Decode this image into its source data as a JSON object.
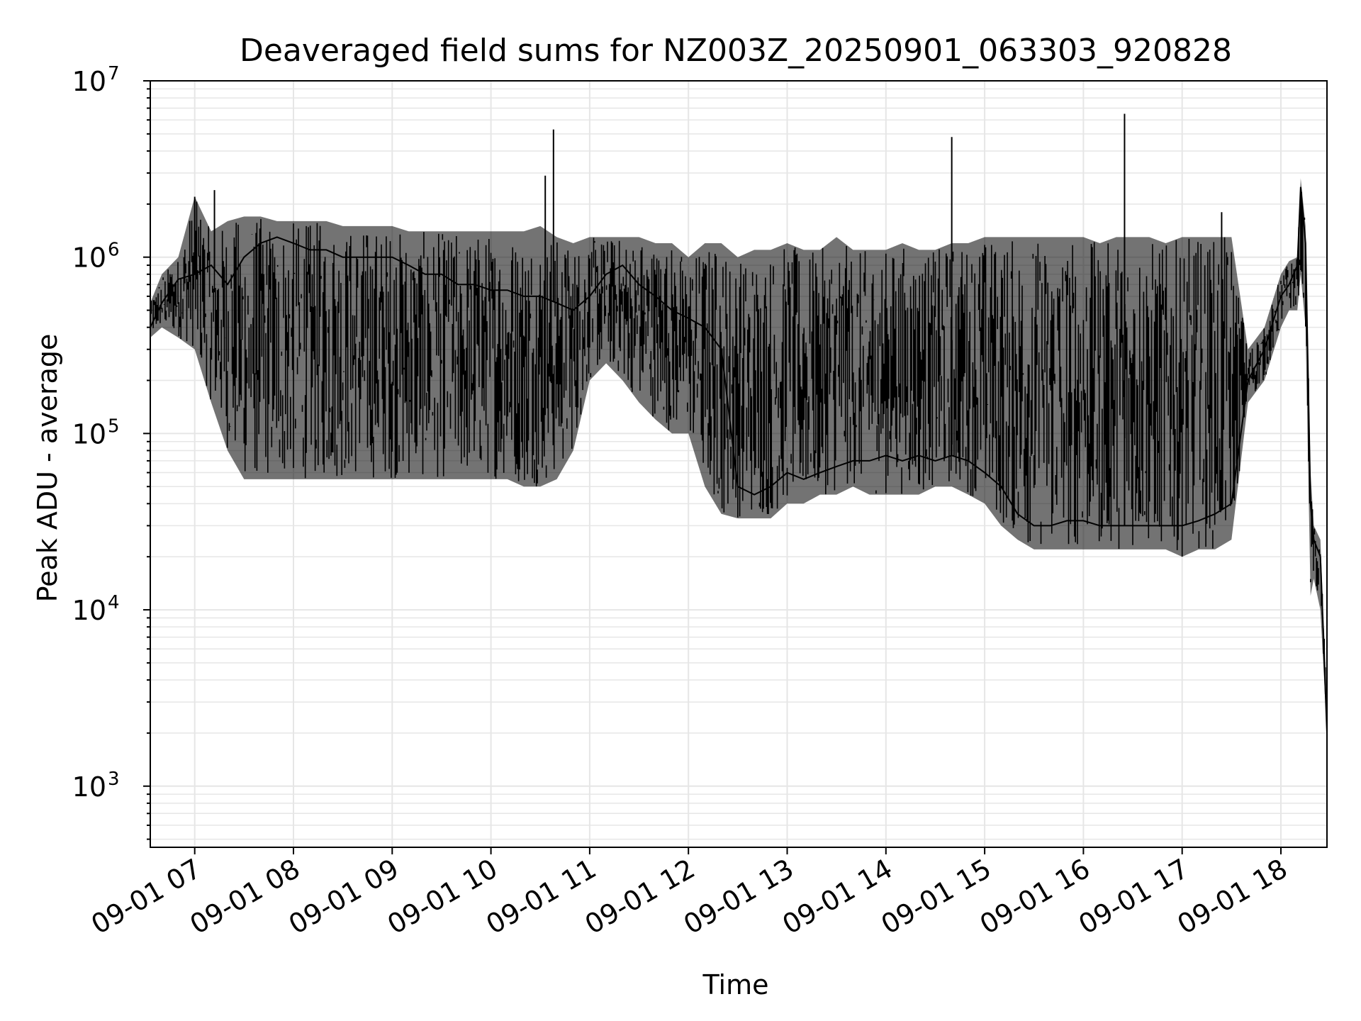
{
  "chart_data": {
    "type": "line",
    "title": "Deaveraged field sums for NZ003Z_20250901_063303_920828",
    "xlabel": "Time",
    "ylabel": "Peak ADU - average",
    "yscale": "log",
    "ylim": [
      450,
      10000000
    ],
    "xlim": [
      "2025-09-01 06:33",
      "2025-09-01 18:28"
    ],
    "grid": true,
    "line_color": "#000000",
    "grid_color": "#e6e6e6",
    "x_ticks": [
      {
        "value": "2025-09-01 07:00",
        "label": "09-01 07"
      },
      {
        "value": "2025-09-01 08:00",
        "label": "09-01 08"
      },
      {
        "value": "2025-09-01 09:00",
        "label": "09-01 09"
      },
      {
        "value": "2025-09-01 10:00",
        "label": "09-01 10"
      },
      {
        "value": "2025-09-01 11:00",
        "label": "09-01 11"
      },
      {
        "value": "2025-09-01 12:00",
        "label": "09-01 12"
      },
      {
        "value": "2025-09-01 13:00",
        "label": "09-01 13"
      },
      {
        "value": "2025-09-01 14:00",
        "label": "09-01 14"
      },
      {
        "value": "2025-09-01 15:00",
        "label": "09-01 15"
      },
      {
        "value": "2025-09-01 16:00",
        "label": "09-01 16"
      },
      {
        "value": "2025-09-01 17:00",
        "label": "09-01 17"
      },
      {
        "value": "2025-09-01 18:00",
        "label": "09-01 18"
      }
    ],
    "y_ticks": [
      {
        "value": 1000,
        "base": "10",
        "exp": "3"
      },
      {
        "value": 10000,
        "base": "10",
        "exp": "4"
      },
      {
        "value": 100000,
        "base": "10",
        "exp": "5"
      },
      {
        "value": 1000000,
        "base": "10",
        "exp": "6"
      },
      {
        "value": 10000000,
        "base": "10",
        "exp": "7"
      }
    ],
    "series": [
      {
        "x": [
          "2025-09-01 06:33",
          "2025-09-01 06:40",
          "2025-09-01 06:50",
          "2025-09-01 07:00",
          "2025-09-01 07:10",
          "2025-09-01 07:20",
          "2025-09-01 07:30",
          "2025-09-01 07:40",
          "2025-09-01 07:50",
          "2025-09-01 08:00",
          "2025-09-01 08:10",
          "2025-09-01 08:20",
          "2025-09-01 08:30",
          "2025-09-01 08:40",
          "2025-09-01 08:50",
          "2025-09-01 09:00",
          "2025-09-01 09:10",
          "2025-09-01 09:20",
          "2025-09-01 09:30",
          "2025-09-01 09:40",
          "2025-09-01 09:50",
          "2025-09-01 10:00",
          "2025-09-01 10:10",
          "2025-09-01 10:20",
          "2025-09-01 10:30",
          "2025-09-01 10:40",
          "2025-09-01 10:50",
          "2025-09-01 11:00",
          "2025-09-01 11:10",
          "2025-09-01 11:20",
          "2025-09-01 11:30",
          "2025-09-01 11:40",
          "2025-09-01 11:50",
          "2025-09-01 12:00",
          "2025-09-01 12:10",
          "2025-09-01 12:20",
          "2025-09-01 12:30",
          "2025-09-01 12:40",
          "2025-09-01 12:50",
          "2025-09-01 13:00",
          "2025-09-01 13:10",
          "2025-09-01 13:20",
          "2025-09-01 13:30",
          "2025-09-01 13:40",
          "2025-09-01 13:50",
          "2025-09-01 14:00",
          "2025-09-01 14:10",
          "2025-09-01 14:20",
          "2025-09-01 14:30",
          "2025-09-01 14:40",
          "2025-09-01 14:50",
          "2025-09-01 15:00",
          "2025-09-01 15:10",
          "2025-09-01 15:20",
          "2025-09-01 15:30",
          "2025-09-01 15:40",
          "2025-09-01 15:50",
          "2025-09-01 16:00",
          "2025-09-01 16:10",
          "2025-09-01 16:20",
          "2025-09-01 16:30",
          "2025-09-01 16:40",
          "2025-09-01 16:50",
          "2025-09-01 17:00",
          "2025-09-01 17:10",
          "2025-09-01 17:20",
          "2025-09-01 17:30",
          "2025-09-01 17:40",
          "2025-09-01 17:50",
          "2025-09-01 18:00",
          "2025-09-01 18:05",
          "2025-09-01 18:10",
          "2025-09-01 18:12",
          "2025-09-01 18:15",
          "2025-09-01 18:18",
          "2025-09-01 18:20",
          "2025-09-01 18:24",
          "2025-09-01 18:28"
        ],
        "y": [
          400000,
          550000,
          750000,
          800000,
          900000,
          700000,
          1000000,
          1200000,
          1300000,
          1200000,
          1100000,
          1100000,
          1000000,
          1000000,
          1000000,
          1000000,
          900000,
          800000,
          800000,
          700000,
          700000,
          650000,
          650000,
          600000,
          600000,
          550000,
          500000,
          600000,
          800000,
          900000,
          700000,
          600000,
          500000,
          450000,
          400000,
          300000,
          50000,
          45000,
          50000,
          60000,
          55000,
          60000,
          65000,
          70000,
          70000,
          75000,
          70000,
          75000,
          70000,
          75000,
          70000,
          60000,
          50000,
          35000,
          30000,
          30000,
          32000,
          32000,
          30000,
          30000,
          30000,
          30000,
          30000,
          30000,
          32000,
          35000,
          40000,
          200000,
          300000,
          600000,
          700000,
          900000,
          2500000,
          1200000,
          40000,
          25000,
          20000,
          2000
        ],
        "envelope_low": [
          350000,
          400000,
          350000,
          300000,
          150000,
          80000,
          55000,
          55000,
          55000,
          55000,
          55000,
          55000,
          55000,
          55000,
          55000,
          55000,
          55000,
          55000,
          55000,
          55000,
          55000,
          55000,
          55000,
          50000,
          50000,
          55000,
          80000,
          200000,
          250000,
          200000,
          150000,
          120000,
          100000,
          100000,
          50000,
          35000,
          33000,
          33000,
          33000,
          40000,
          40000,
          45000,
          45000,
          50000,
          45000,
          45000,
          45000,
          45000,
          50000,
          50000,
          45000,
          40000,
          30000,
          25000,
          22000,
          22000,
          22000,
          22000,
          22000,
          22000,
          22000,
          22000,
          22000,
          20000,
          22000,
          22000,
          25000,
          150000,
          200000,
          400000,
          500000,
          500000,
          800000,
          400000,
          12000,
          15000,
          10000,
          2000
        ],
        "envelope_high": [
          550000,
          800000,
          1000000,
          2200000,
          1400000,
          1600000,
          1700000,
          1700000,
          1600000,
          1600000,
          1600000,
          1600000,
          1500000,
          1500000,
          1500000,
          1500000,
          1400000,
          1400000,
          1400000,
          1400000,
          1400000,
          1400000,
          1400000,
          1400000,
          1500000,
          1300000,
          1200000,
          1300000,
          1300000,
          1300000,
          1300000,
          1200000,
          1200000,
          1000000,
          1200000,
          1200000,
          1000000,
          1100000,
          1100000,
          1200000,
          1100000,
          1100000,
          1300000,
          1100000,
          1100000,
          1100000,
          1200000,
          1100000,
          1100000,
          1200000,
          1200000,
          1300000,
          1300000,
          1300000,
          1300000,
          1300000,
          1300000,
          1300000,
          1200000,
          1300000,
          1300000,
          1300000,
          1200000,
          1300000,
          1300000,
          1300000,
          1300000,
          300000,
          400000,
          800000,
          950000,
          1000000,
          2800000,
          1500000,
          60000,
          30000,
          25000,
          3000
        ],
        "spikes": [
          {
            "x": "2025-09-01 07:00",
            "y": 2200000
          },
          {
            "x": "2025-09-01 07:12",
            "y": 2400000
          },
          {
            "x": "2025-09-01 10:33",
            "y": 2900000
          },
          {
            "x": "2025-09-01 10:38",
            "y": 5300000
          },
          {
            "x": "2025-09-01 14:40",
            "y": 4800000
          },
          {
            "x": "2025-09-01 16:25",
            "y": 6500000
          },
          {
            "x": "2025-09-01 17:24",
            "y": 1800000
          }
        ]
      }
    ]
  }
}
